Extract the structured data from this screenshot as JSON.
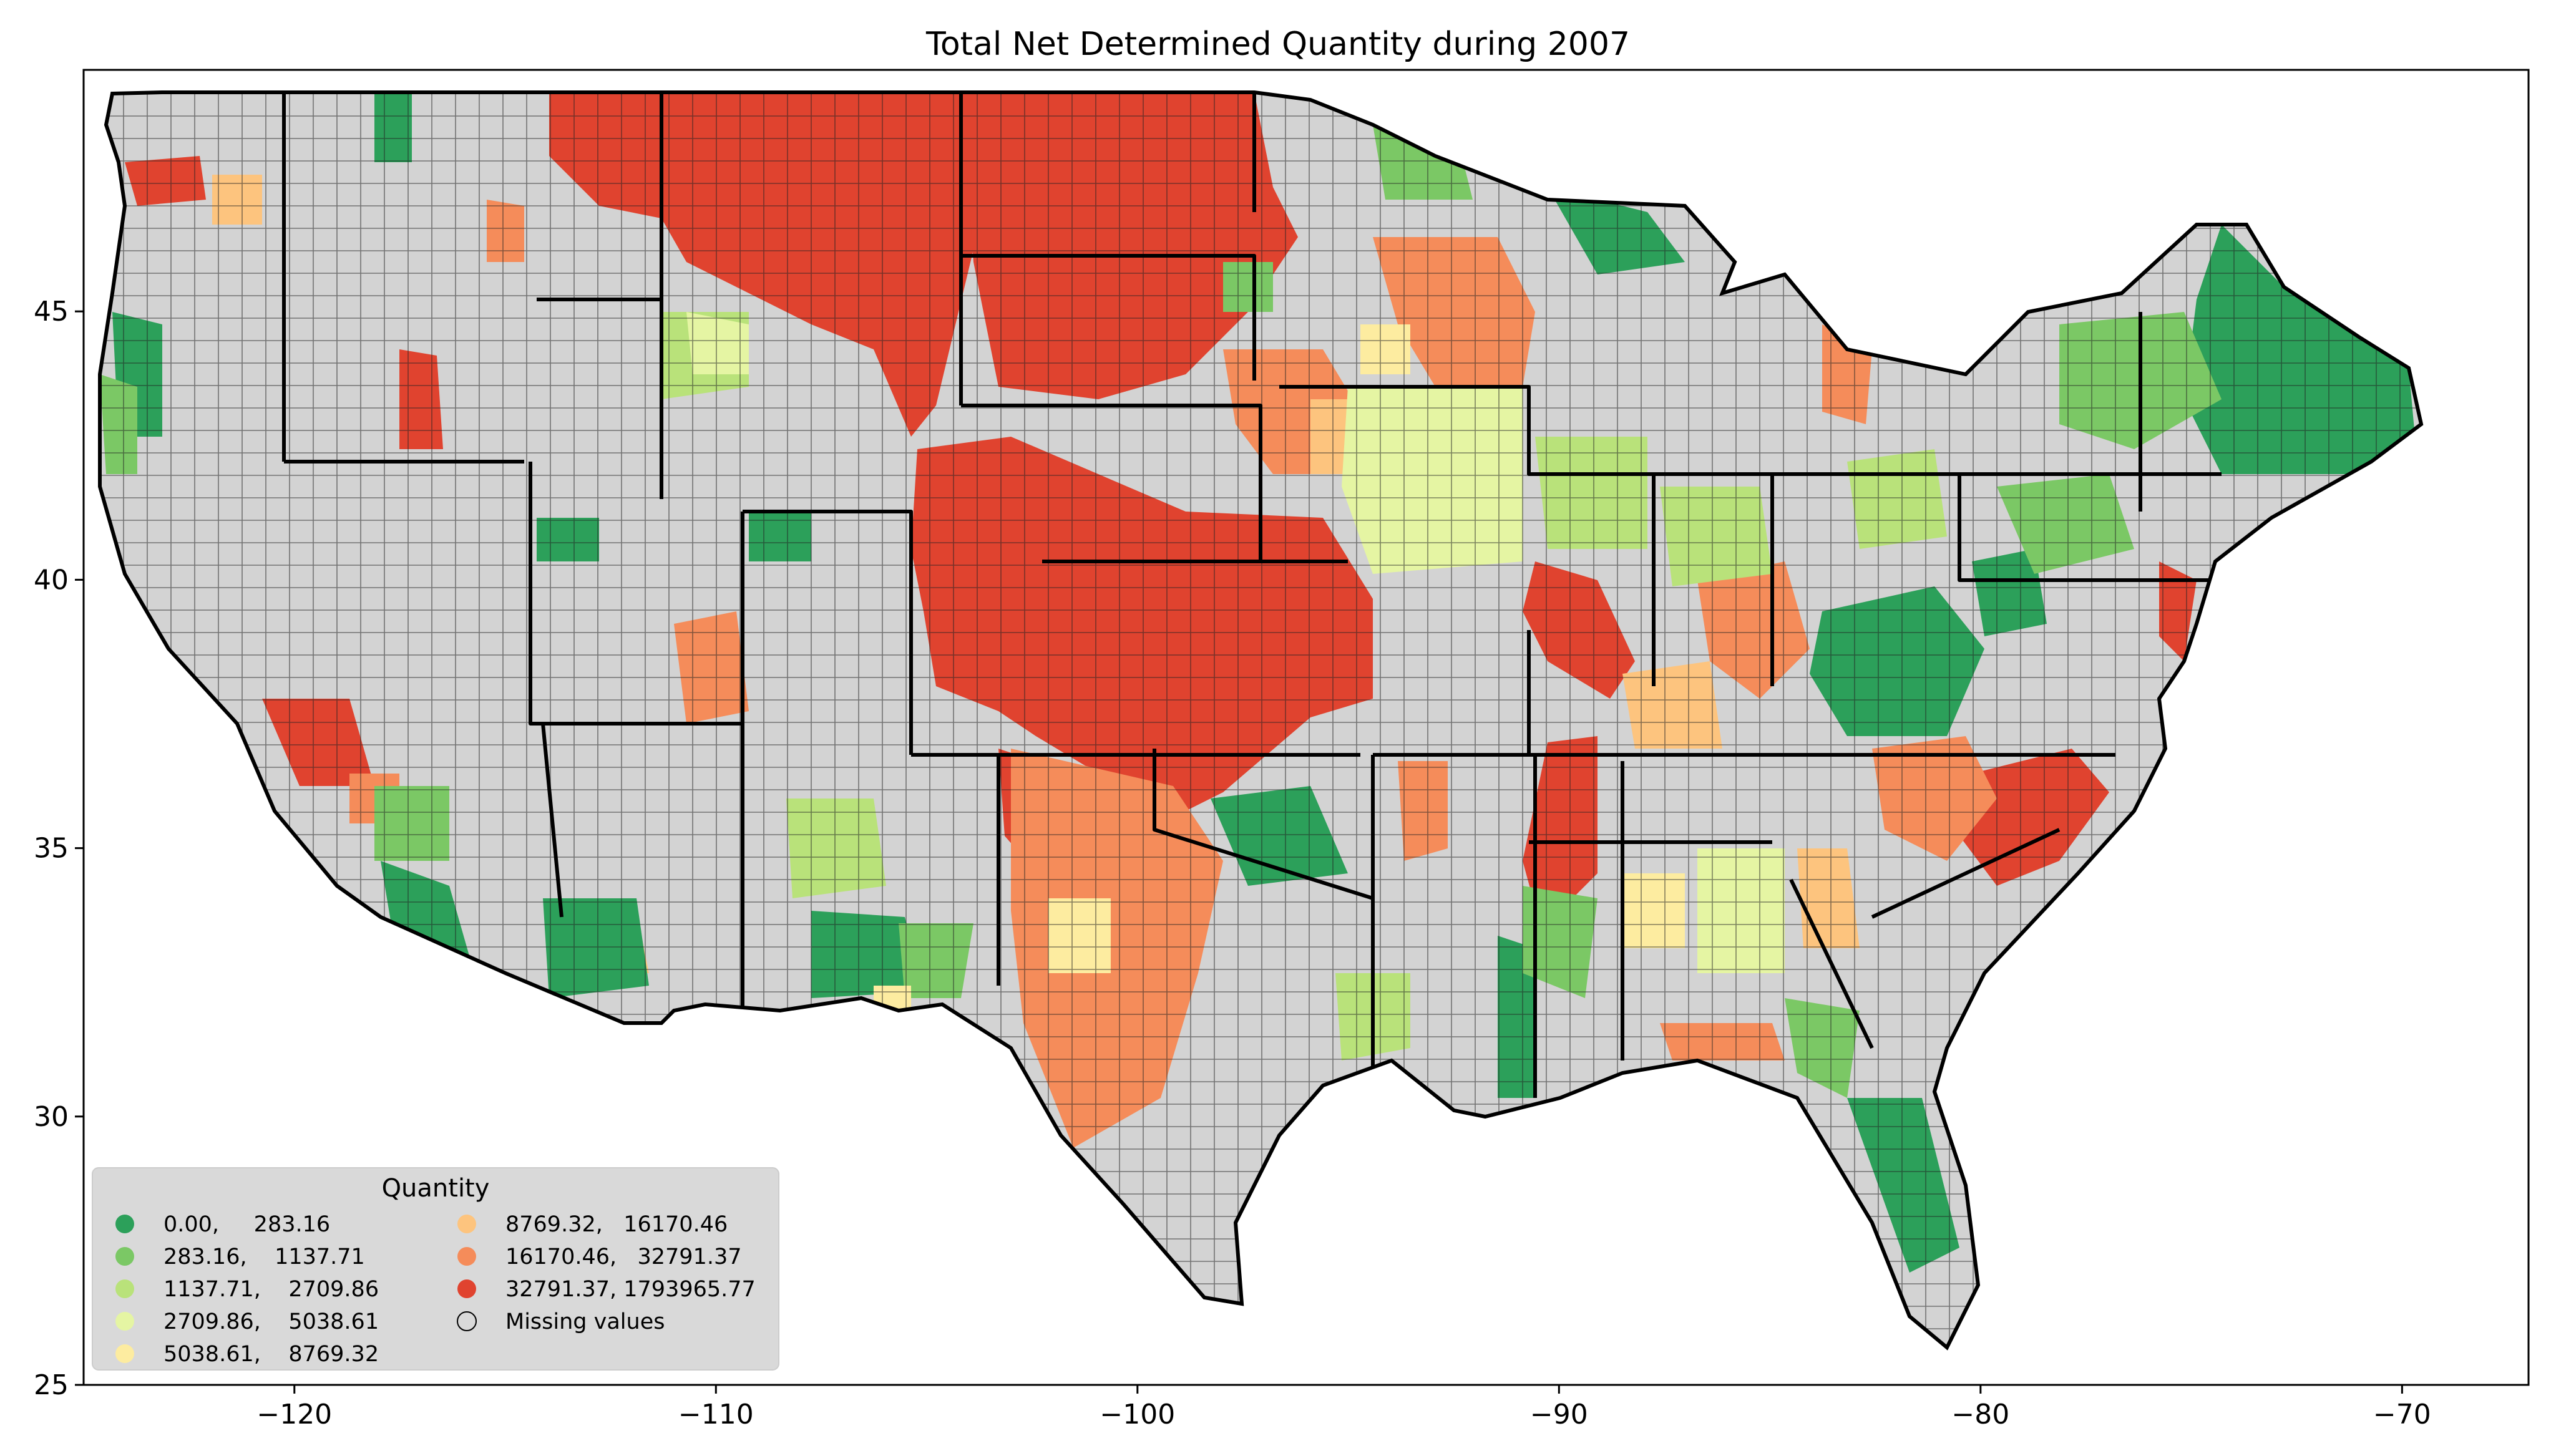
{
  "title": "Total Net Determined Quantity during 2007",
  "map_data": {
    "type": "choropleth",
    "region": "contiguous United States (counties)",
    "xlim": [
      -125,
      -67
    ],
    "ylim": [
      25,
      49.5
    ],
    "x_ticks": [
      -120,
      -110,
      -100,
      -90,
      -80,
      -70
    ],
    "x_tick_labels": [
      "−120",
      "−110",
      "−100",
      "−90",
      "−80",
      "−70"
    ],
    "y_ticks": [
      25,
      30,
      35,
      40,
      45
    ],
    "y_tick_labels": [
      "25",
      "30",
      "35",
      "40",
      "45"
    ],
    "legend": {
      "title": "Quantity",
      "placement": "lower-left",
      "entries": [
        {
          "label": "0.00,     283.16",
          "color": "#2ca05a"
        },
        {
          "label": "283.16,    1137.71",
          "color": "#7bc865"
        },
        {
          "label": "1137.71,    2709.86",
          "color": "#b9e27a"
        },
        {
          "label": "2709.86,    5038.61",
          "color": "#e5f5a3"
        },
        {
          "label": "5038.61,    8769.32",
          "color": "#fdeca0"
        },
        {
          "label": "8769.32,   16170.46",
          "color": "#fdc47e"
        },
        {
          "label": "16170.46,   32791.37",
          "color": "#f58c5a"
        },
        {
          "label": "32791.37, 1793965.77",
          "color": "#e0432f"
        },
        {
          "label": "Missing values",
          "color": "#d3d3d3"
        }
      ]
    },
    "missing_color": "#d3d3d3"
  }
}
